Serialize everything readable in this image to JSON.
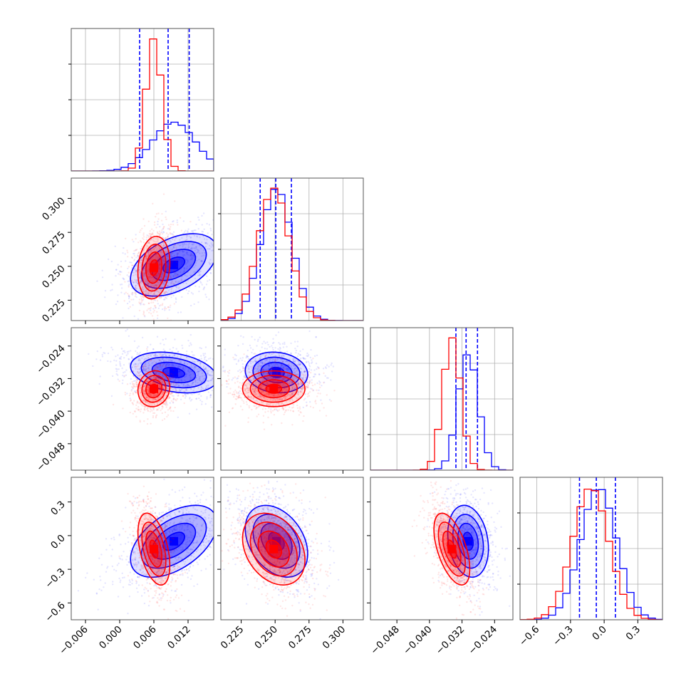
{
  "chart_data": {
    "type": "corner",
    "n_params": 4,
    "params": [
      {
        "range": [
          -0.0085,
          0.0165
        ],
        "ticks": [
          -0.006,
          0.0,
          0.006,
          0.012
        ],
        "tick_labels": [
          "−0.006",
          "0.000",
          "0.006",
          "0.012"
        ]
      },
      {
        "range": [
          0.21,
          0.315
        ],
        "ticks": [
          0.225,
          0.25,
          0.275,
          0.3
        ],
        "tick_labels": [
          "0.225",
          "0.250",
          "0.275",
          "0.300"
        ]
      },
      {
        "range": [
          -0.0545,
          -0.0195
        ],
        "ticks": [
          -0.048,
          -0.04,
          -0.032,
          -0.024
        ],
        "tick_labels": [
          "−0.048",
          "−0.040",
          "−0.032",
          "−0.024"
        ]
      },
      {
        "range": [
          -0.75,
          0.52
        ],
        "ticks": [
          -0.6,
          -0.3,
          0.0,
          0.3
        ],
        "tick_labels": [
          "−0.6",
          "−0.3",
          "0.0",
          "0.3"
        ]
      }
    ],
    "series": [
      {
        "color": "#0000ff",
        "means": [
          0.0095,
          0.251,
          -0.0305,
          -0.05
        ],
        "sigmas": [
          0.0038,
          0.0115,
          0.0025,
          0.16
        ],
        "correlations": [
          [
            0,
            1,
            0.45
          ],
          [
            0,
            2,
            -0.3
          ],
          [
            0,
            3,
            0.5
          ],
          [
            1,
            2,
            -0.1
          ],
          [
            1,
            3,
            -0.35
          ],
          [
            2,
            3,
            -0.2
          ]
        ],
        "quantiles": [
          [
            0.0035,
            0.0085,
            0.0122
          ],
          [
            0.239,
            0.2505,
            0.262
          ],
          [
            -0.0335,
            -0.031,
            -0.0282
          ],
          [
            -0.22,
            -0.07,
            0.1
          ]
        ]
      },
      {
        "color": "#ff0000",
        "means": [
          0.006,
          0.249,
          -0.0345,
          -0.12
        ],
        "sigmas": [
          0.0014,
          0.0115,
          0.0022,
          0.16
        ],
        "correlations": [
          [
            0,
            1,
            0.15
          ],
          [
            0,
            2,
            0.1
          ],
          [
            0,
            3,
            -0.45
          ],
          [
            1,
            2,
            0.0
          ],
          [
            1,
            3,
            -0.3
          ],
          [
            2,
            3,
            -0.55
          ]
        ],
        "quantiles": []
      }
    ]
  }
}
